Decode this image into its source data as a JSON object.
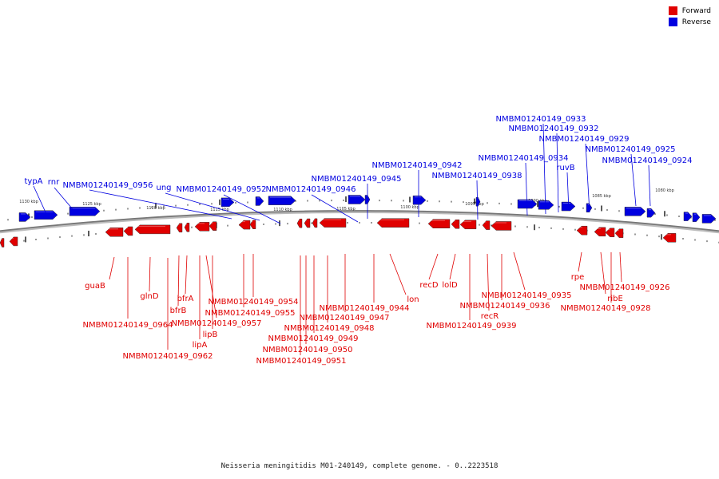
{
  "legend": {
    "forward_label": "Forward",
    "reverse_label": "Reverse",
    "forward_color": "#e00000",
    "reverse_color": "#0000e0"
  },
  "caption": "Neisseria meningitidis M01-240149, complete genome. - 0..2223518",
  "scale_labels": [
    "1130 kbp",
    "1125 kbp",
    "1120 kbp",
    "1115 kbp",
    "1110 kbp",
    "1105 kbp",
    "1100 kbp",
    "1095 kbp",
    "1090 kbp",
    "1085 kbp",
    "1080 kbp"
  ],
  "reverse_genes": [
    "typA",
    "rnr",
    "NMBM01240149_0956",
    "ung",
    "NMBM01240149_0952",
    "NMBM01240149_0946",
    "NMBM01240149_0945",
    "NMBM01240149_0942",
    "NMBM01240149_0938",
    "NMBM01240149_0934",
    "NMBM01240149_0933",
    "NMBM01240149_0932",
    "NMBM01240149_0929",
    "ruvB",
    "NMBM01240149_0925",
    "NMBM01240149_0924"
  ],
  "forward_genes": [
    "guaB",
    "NMBM01240149_0964",
    "glnD",
    "NMBM01240149_0962",
    "bfrB",
    "bfrA",
    "lipA",
    "NMBM01240149_0957",
    "lipB",
    "NMBM01240149_0955",
    "NMBM01240149_0954",
    "NMBM01240149_0951",
    "NMBM01240149_0950",
    "NMBM01240149_0949",
    "NMBM01240149_0948",
    "NMBM01240149_0947",
    "NMBM01240149_0944",
    "lon",
    "recD",
    "lolD",
    "NMBM01240149_0939",
    "recR",
    "NMBM01240149_0936",
    "NMBM01240149_0935",
    "rpe",
    "ribE",
    "NMBM01240149_0928",
    "NMBM01240149_0926"
  ]
}
